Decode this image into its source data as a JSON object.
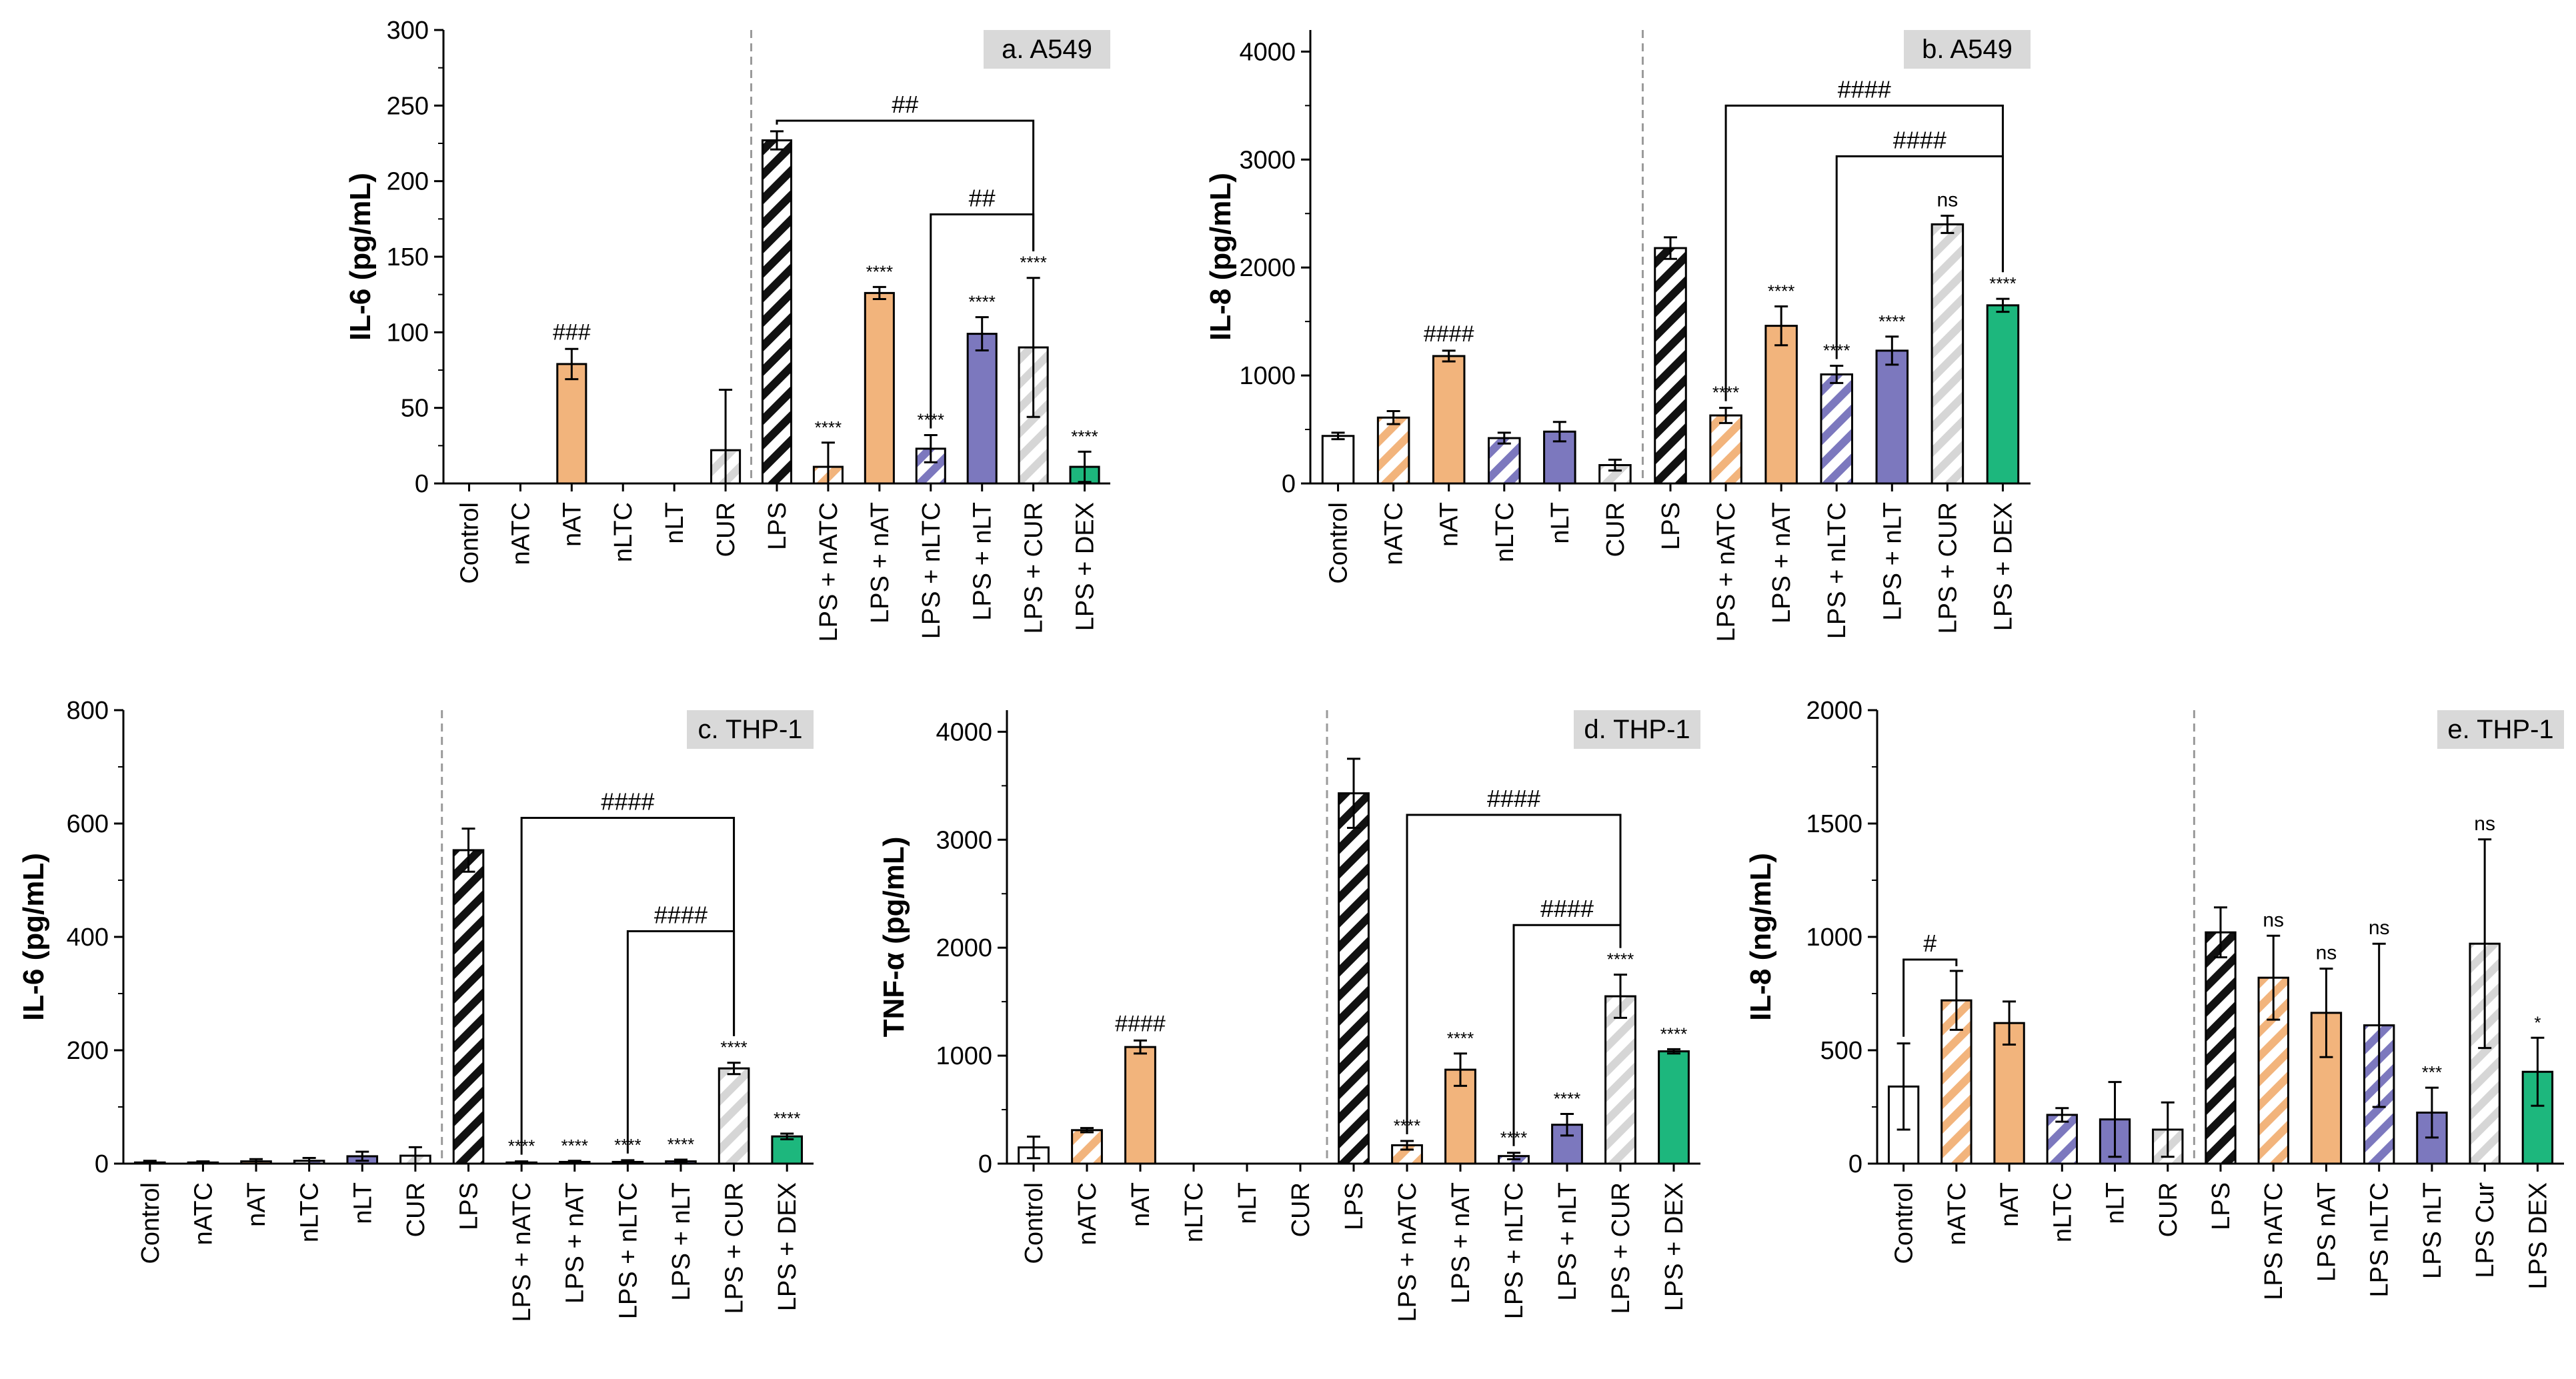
{
  "colors": {
    "orange": "#F2B47C",
    "purple": "#7C78BE",
    "grey": "#D6D6D6",
    "green": "#1DB77D",
    "black": "#111111",
    "white": "#FFFFFF",
    "panel_label_bg": "#D9D9D9"
  },
  "chart_data": [
    {
      "type": "bar",
      "title": "a. A549",
      "ylabel": "IL-6 (pg/mL)",
      "xlabel": "",
      "ylim": [
        0,
        300
      ],
      "yticks": [
        "0",
        "50",
        "100",
        "150",
        "200",
        "250",
        "300"
      ],
      "categories": [
        "Control",
        "nATC",
        "nAT",
        "nLTC",
        "nLT",
        "CUR",
        "LPS",
        "LPS + nATC",
        "LPS + nAT",
        "LPS + nLTC",
        "LPS + nLT",
        "LPS + CUR",
        "LPS + DEX"
      ],
      "values": [
        0,
        0,
        79,
        0,
        0,
        22,
        227,
        11,
        126,
        23,
        99,
        90,
        11
      ],
      "errors": [
        0,
        0,
        10,
        0,
        0,
        40,
        6,
        16,
        4,
        9,
        11,
        46,
        10
      ],
      "styles": [
        "white",
        "orange-hatch",
        "orange",
        "purple-hatch",
        "purple",
        "grey-hatch",
        "black-hatch",
        "orange-hatch",
        "orange",
        "purple-hatch",
        "purple",
        "grey-hatch",
        "green"
      ],
      "annotations": [
        "",
        "",
        "###",
        "",
        "",
        "",
        "",
        "****",
        "****",
        "****",
        "****",
        "****",
        "****"
      ],
      "brackets": [
        {
          "from": "LPS",
          "to": "LPS + CUR",
          "label": "##",
          "level": 240
        },
        {
          "from": "LPS + nLTC",
          "to": "LPS + CUR",
          "label": "##",
          "level": 178
        }
      ]
    },
    {
      "type": "bar",
      "title": "b. A549",
      "ylabel": "IL-8 (pg/mL)",
      "xlabel": "",
      "ylim": [
        0,
        4200
      ],
      "yticks": [
        "0",
        "1000",
        "2000",
        "3000",
        "4000"
      ],
      "categories": [
        "Control",
        "nATC",
        "nAT",
        "nLTC",
        "nLT",
        "CUR",
        "LPS",
        "LPS + nATC",
        "LPS + nAT",
        "LPS + nLTC",
        "LPS + nLT",
        "LPS + CUR",
        "LPS + DEX"
      ],
      "values": [
        440,
        610,
        1180,
        420,
        480,
        170,
        2180,
        630,
        1460,
        1010,
        1230,
        2400,
        1650
      ],
      "errors": [
        30,
        60,
        50,
        50,
        90,
        50,
        100,
        70,
        180,
        80,
        130,
        80,
        60
      ],
      "styles": [
        "white",
        "orange-hatch",
        "orange",
        "purple-hatch",
        "purple",
        "grey-hatch",
        "black-hatch",
        "orange-hatch",
        "orange",
        "purple-hatch",
        "purple",
        "grey-hatch",
        "green"
      ],
      "annotations": [
        "",
        "",
        "####",
        "",
        "",
        "",
        "",
        "****",
        "****",
        "****",
        "****",
        "ns",
        "****"
      ],
      "brackets": [
        {
          "from": "LPS + nATC",
          "to": "LPS + DEX",
          "label": "####",
          "level": 3500
        },
        {
          "from": "LPS + nLTC",
          "to": "LPS + DEX",
          "label": "####",
          "level": 3030
        }
      ]
    },
    {
      "type": "bar",
      "title": "c. THP-1",
      "ylabel": "IL-6 (pg/mL)",
      "xlabel": "",
      "ylim": [
        0,
        800
      ],
      "yticks": [
        "0",
        "200",
        "400",
        "600",
        "800"
      ],
      "categories": [
        "Control",
        "nATC",
        "nAT",
        "nLTC",
        "nLT",
        "CUR",
        "LPS",
        "LPS + nATC",
        "LPS + nAT",
        "LPS + nLTC",
        "LPS + nLT",
        "LPS + CUR",
        "LPS + DEX"
      ],
      "values": [
        2,
        2,
        4,
        5,
        13,
        14,
        553,
        2,
        3,
        3,
        4,
        168,
        48
      ],
      "errors": [
        3,
        2,
        4,
        5,
        8,
        15,
        38,
        2,
        2,
        3,
        3,
        10,
        5
      ],
      "styles": [
        "white",
        "orange-hatch",
        "orange",
        "purple-hatch",
        "purple",
        "grey-hatch",
        "black-hatch",
        "orange-hatch",
        "orange",
        "purple-hatch",
        "purple",
        "grey-hatch",
        "green"
      ],
      "annotations": [
        "",
        "",
        "",
        "",
        "",
        "",
        "",
        "****",
        "****",
        "****",
        "****",
        "****",
        "****"
      ],
      "brackets": [
        {
          "from": "LPS + nATC",
          "to": "LPS + CUR",
          "label": "####",
          "level": 610
        },
        {
          "from": "LPS + nLTC",
          "to": "LPS + CUR",
          "label": "####",
          "level": 410
        }
      ]
    },
    {
      "type": "bar",
      "title": "d. THP-1",
      "ylabel": "TNF-α (pg/mL)",
      "xlabel": "",
      "ylim": [
        0,
        4200
      ],
      "yticks": [
        "0",
        "1000",
        "2000",
        "3000",
        "4000"
      ],
      "categories": [
        "Control",
        "nATC",
        "nAT",
        "nLTC",
        "nLT",
        "CUR",
        "LPS",
        "LPS + nATC",
        "LPS + nAT",
        "LPS + nLTC",
        "LPS + nLT",
        "LPS + CUR",
        "LPS + DEX"
      ],
      "values": [
        150,
        310,
        1080,
        0,
        0,
        0,
        3430,
        170,
        870,
        70,
        360,
        1550,
        1040
      ],
      "errors": [
        100,
        20,
        60,
        0,
        0,
        0,
        320,
        40,
        150,
        30,
        100,
        200,
        20
      ],
      "styles": [
        "white",
        "orange-hatch",
        "orange",
        "purple-hatch",
        "purple",
        "grey-hatch",
        "black-hatch",
        "orange-hatch",
        "orange",
        "purple-hatch",
        "purple",
        "grey-hatch",
        "green"
      ],
      "annotations": [
        "",
        "",
        "####",
        "",
        "",
        "",
        "",
        "****",
        "****",
        "****",
        "****",
        "****",
        "****"
      ],
      "brackets": [
        {
          "from": "LPS + nATC",
          "to": "LPS + CUR",
          "label": "####",
          "level": 3230
        },
        {
          "from": "LPS + nLTC",
          "to": "LPS + CUR",
          "label": "####",
          "level": 2210
        }
      ]
    },
    {
      "type": "bar",
      "title": "e. THP-1",
      "ylabel": "IL-8 (ng/mL)",
      "xlabel": "",
      "ylim": [
        0,
        2000
      ],
      "yticks": [
        "0",
        "500",
        "1000",
        "1500",
        "2000"
      ],
      "categories": [
        "Control",
        "nATC",
        "nAT",
        "nLTC",
        "nLT",
        "CUR",
        "LPS",
        "LPS nATC",
        "LPS nAT",
        "LPS nLTC",
        "LPS nLT",
        "LPS Cur",
        "LPS DEX"
      ],
      "values": [
        340,
        720,
        620,
        215,
        195,
        150,
        1020,
        820,
        665,
        610,
        225,
        970,
        405
      ],
      "errors": [
        190,
        130,
        95,
        30,
        165,
        120,
        110,
        185,
        195,
        360,
        110,
        460,
        150
      ],
      "styles": [
        "white",
        "orange-hatch",
        "orange",
        "purple-hatch",
        "purple",
        "grey-hatch",
        "black-hatch",
        "orange-hatch",
        "orange",
        "purple-hatch",
        "purple",
        "grey-hatch",
        "green"
      ],
      "annotations": [
        "",
        "",
        "",
        "",
        "",
        "",
        "",
        "ns",
        "ns",
        "ns",
        "***",
        "ns",
        "*"
      ],
      "brackets": [
        {
          "from": "Control",
          "to": "nATC",
          "label": "#",
          "level": 900
        }
      ]
    }
  ]
}
